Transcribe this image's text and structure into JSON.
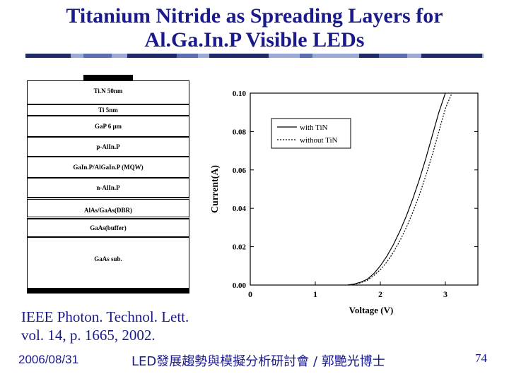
{
  "title": {
    "line1": "Titanium Nitride as Spreading Layers for",
    "line2": "Al.Ga.In.P Visible LEDs"
  },
  "diagram": {
    "layers": [
      {
        "label": "Ti.N  50nm"
      },
      {
        "label": "Ti  5nm"
      },
      {
        "label": "GaP  6 μm"
      },
      {
        "label": "p-AlIn.P"
      },
      {
        "label": "GaIn.P/AlGaIn.P (MQW)"
      },
      {
        "label": "n-AlIn.P"
      },
      {
        "label": "AlAs/GaAs(DBR)"
      },
      {
        "label": "GaAs(buffer)"
      },
      {
        "label": "GaAs  sub."
      }
    ]
  },
  "reference": {
    "line1": "IEEE Photon. Technol. Lett.",
    "line2": "vol. 14, p. 1665, 2002."
  },
  "footer": {
    "date": "2006/08/31",
    "center": "LED發展趨勢與模擬分析研討會 / 郭艷光博士",
    "page": "74"
  },
  "colors": {
    "title": "#1a1a8c",
    "text": "#1a1a8c",
    "bar_dark": "#1f2a6b",
    "bar_mid": "#5a6fb3",
    "bar_light": "#9aa9d6"
  },
  "chart_data": {
    "type": "line",
    "title": "",
    "xlabel": "Voltage (V)",
    "ylabel": "Current(A)",
    "xlim": [
      0,
      3.5
    ],
    "ylim": [
      0,
      0.1
    ],
    "xticks": [
      "0",
      "1",
      "2",
      "3"
    ],
    "yticks": [
      "0.00",
      "0.02",
      "0.04",
      "0.06",
      "0.08",
      "0.10"
    ],
    "legend": "top-left",
    "series": [
      {
        "name": "with TiN",
        "style": "solid",
        "x": [
          1.5,
          1.6,
          1.7,
          1.8,
          1.9,
          2.0,
          2.1,
          2.2,
          2.3,
          2.4,
          2.5,
          2.6,
          2.7,
          2.8,
          2.9,
          3.0
        ],
        "y": [
          0.0,
          0.0005,
          0.0015,
          0.003,
          0.006,
          0.01,
          0.015,
          0.021,
          0.028,
          0.036,
          0.045,
          0.055,
          0.066,
          0.078,
          0.09,
          0.1
        ]
      },
      {
        "name": "without TiN",
        "style": "dotted",
        "x": [
          1.5,
          1.6,
          1.7,
          1.8,
          1.9,
          2.0,
          2.1,
          2.2,
          2.3,
          2.4,
          2.5,
          2.6,
          2.7,
          2.8,
          2.9,
          3.0,
          3.1
        ],
        "y": [
          0.0,
          0.0004,
          0.0012,
          0.0025,
          0.005,
          0.008,
          0.012,
          0.017,
          0.023,
          0.03,
          0.038,
          0.047,
          0.057,
          0.068,
          0.08,
          0.092,
          0.1
        ]
      }
    ]
  }
}
